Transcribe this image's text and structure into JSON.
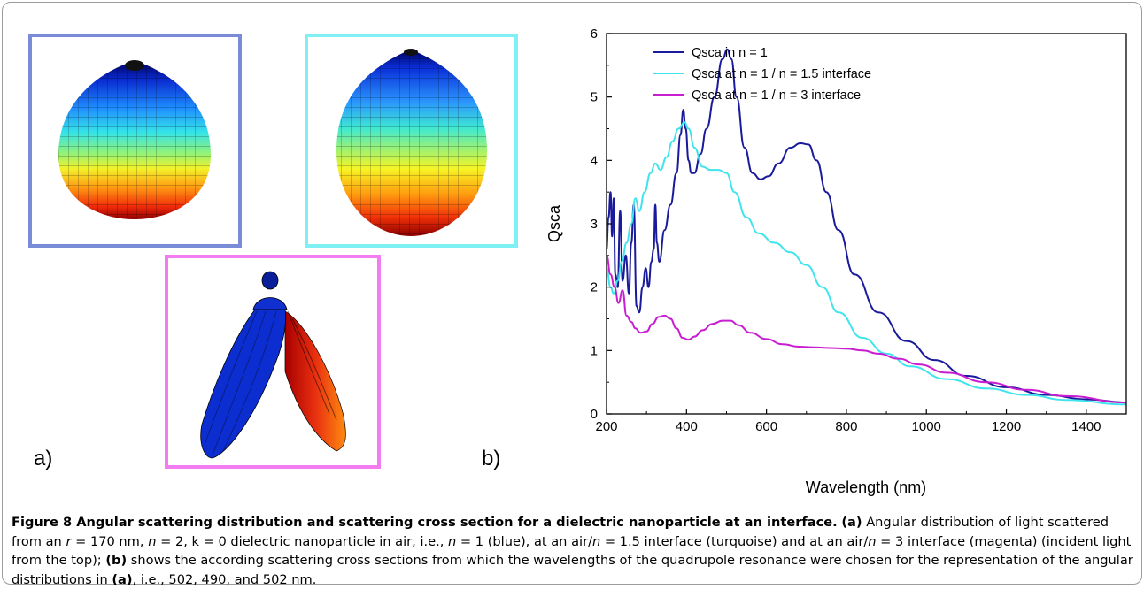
{
  "panels": {
    "a_label": "a)",
    "b_label": "b)",
    "frame_colors": {
      "blue": "#7a8bd8",
      "turquoise": "#7ff0f4",
      "magenta": "#f27cf0"
    }
  },
  "chart_data": {
    "type": "line",
    "xlabel": "Wavelength (nm)",
    "ylabel": "Qsca",
    "xlim": [
      200,
      1500
    ],
    "ylim": [
      0,
      6
    ],
    "x_ticks": [
      "200",
      "400",
      "600",
      "800",
      "1000",
      "1200",
      "1400"
    ],
    "y_ticks": [
      "0",
      "1",
      "2",
      "3",
      "4",
      "5",
      "6"
    ],
    "legend_position": "top-right",
    "grid": false,
    "series": [
      {
        "name": "Qsca in n = 1",
        "color": "#1a1a9c",
        "points": [
          [
            200,
            2.6
          ],
          [
            205,
            3.1
          ],
          [
            210,
            3.5
          ],
          [
            214,
            2.8
          ],
          [
            218,
            3.4
          ],
          [
            222,
            2.2
          ],
          [
            228,
            2.0
          ],
          [
            234,
            3.2
          ],
          [
            240,
            2.1
          ],
          [
            248,
            2.5
          ],
          [
            256,
            1.9
          ],
          [
            262,
            2.7
          ],
          [
            268,
            3.3
          ],
          [
            275,
            1.7
          ],
          [
            282,
            1.6
          ],
          [
            290,
            2.0
          ],
          [
            298,
            2.3
          ],
          [
            305,
            2.0
          ],
          [
            312,
            2.4
          ],
          [
            318,
            2.6
          ],
          [
            322,
            3.3
          ],
          [
            326,
            2.7
          ],
          [
            332,
            2.4
          ],
          [
            345,
            2.9
          ],
          [
            360,
            3.3
          ],
          [
            375,
            3.8
          ],
          [
            385,
            4.4
          ],
          [
            392,
            4.8
          ],
          [
            398,
            4.5
          ],
          [
            405,
            4.0
          ],
          [
            412,
            3.8
          ],
          [
            420,
            3.8
          ],
          [
            435,
            4.1
          ],
          [
            450,
            4.5
          ],
          [
            470,
            5.0
          ],
          [
            490,
            5.6
          ],
          [
            502,
            5.75
          ],
          [
            512,
            5.6
          ],
          [
            525,
            5.0
          ],
          [
            545,
            4.2
          ],
          [
            565,
            3.8
          ],
          [
            585,
            3.7
          ],
          [
            605,
            3.75
          ],
          [
            630,
            3.95
          ],
          [
            660,
            4.2
          ],
          [
            685,
            4.27
          ],
          [
            705,
            4.25
          ],
          [
            725,
            4.0
          ],
          [
            750,
            3.5
          ],
          [
            780,
            2.9
          ],
          [
            820,
            2.2
          ],
          [
            880,
            1.6
          ],
          [
            950,
            1.15
          ],
          [
            1020,
            0.85
          ],
          [
            1100,
            0.6
          ],
          [
            1200,
            0.42
          ],
          [
            1300,
            0.3
          ],
          [
            1400,
            0.23
          ],
          [
            1500,
            0.18
          ]
        ]
      },
      {
        "name": "Qsca at n = 1 / n = 1.5 interface",
        "color": "#40e4ec",
        "points": [
          [
            200,
            2.3
          ],
          [
            210,
            2.0
          ],
          [
            218,
            1.9
          ],
          [
            228,
            2.1
          ],
          [
            238,
            2.4
          ],
          [
            250,
            2.7
          ],
          [
            262,
            3.0
          ],
          [
            272,
            3.4
          ],
          [
            282,
            3.2
          ],
          [
            295,
            3.5
          ],
          [
            310,
            3.8
          ],
          [
            322,
            3.95
          ],
          [
            335,
            3.85
          ],
          [
            350,
            4.05
          ],
          [
            365,
            4.3
          ],
          [
            380,
            4.5
          ],
          [
            395,
            4.6
          ],
          [
            405,
            4.5
          ],
          [
            420,
            4.2
          ],
          [
            440,
            3.9
          ],
          [
            460,
            3.85
          ],
          [
            480,
            3.85
          ],
          [
            500,
            3.8
          ],
          [
            520,
            3.5
          ],
          [
            550,
            3.1
          ],
          [
            580,
            2.85
          ],
          [
            620,
            2.7
          ],
          [
            660,
            2.55
          ],
          [
            700,
            2.35
          ],
          [
            740,
            2.0
          ],
          [
            780,
            1.6
          ],
          [
            840,
            1.2
          ],
          [
            900,
            0.95
          ],
          [
            960,
            0.75
          ],
          [
            1050,
            0.55
          ],
          [
            1150,
            0.4
          ],
          [
            1250,
            0.3
          ],
          [
            1350,
            0.22
          ],
          [
            1500,
            0.15
          ]
        ]
      },
      {
        "name": "Qsca at n = 1 / n = 3 interface",
        "color": "#c91dd1",
        "points": [
          [
            200,
            2.5
          ],
          [
            210,
            2.2
          ],
          [
            220,
            2.0
          ],
          [
            230,
            1.75
          ],
          [
            240,
            1.95
          ],
          [
            250,
            1.55
          ],
          [
            262,
            1.45
          ],
          [
            272,
            1.35
          ],
          [
            285,
            1.28
          ],
          [
            300,
            1.3
          ],
          [
            315,
            1.42
          ],
          [
            330,
            1.53
          ],
          [
            345,
            1.55
          ],
          [
            360,
            1.5
          ],
          [
            375,
            1.35
          ],
          [
            390,
            1.2
          ],
          [
            405,
            1.17
          ],
          [
            420,
            1.22
          ],
          [
            440,
            1.32
          ],
          [
            465,
            1.42
          ],
          [
            490,
            1.47
          ],
          [
            510,
            1.47
          ],
          [
            530,
            1.4
          ],
          [
            560,
            1.28
          ],
          [
            600,
            1.18
          ],
          [
            640,
            1.1
          ],
          [
            680,
            1.06
          ],
          [
            720,
            1.05
          ],
          [
            760,
            1.04
          ],
          [
            800,
            1.03
          ],
          [
            840,
            1.0
          ],
          [
            880,
            0.95
          ],
          [
            930,
            0.87
          ],
          [
            980,
            0.78
          ],
          [
            1050,
            0.65
          ],
          [
            1150,
            0.5
          ],
          [
            1250,
            0.38
          ],
          [
            1350,
            0.28
          ],
          [
            1500,
            0.18
          ]
        ]
      }
    ]
  },
  "caption": {
    "title": "Figure 8 Angular scattering distribution and scattering cross section for a dielectric nanoparticle at an interface.",
    "a1": "(a)",
    "t1": " Angular distribution of light scattered from an ",
    "r_var": "r",
    "t2": " = 170 nm, ",
    "n_var1": "n",
    "t3": " = 2, k = 0 dielectric nanoparticle in air, i.e., ",
    "n_var2": "n",
    "t4": " = 1 (blue), at an air/",
    "n_var3": "n",
    "t5": " = 1.5 interface (turquoise) and at an air/",
    "n_var4": "n",
    "t6": " = 3 interface (magenta) (incident light from the top); ",
    "b1": "(b)",
    "t7": " shows the according scattering cross sections from which the wavelengths of the quadrupole resonance were chosen for the representation of the angular distributions in ",
    "a2": "(a)",
    "t8": ", i.e., 502, 490, and 502 nm."
  }
}
